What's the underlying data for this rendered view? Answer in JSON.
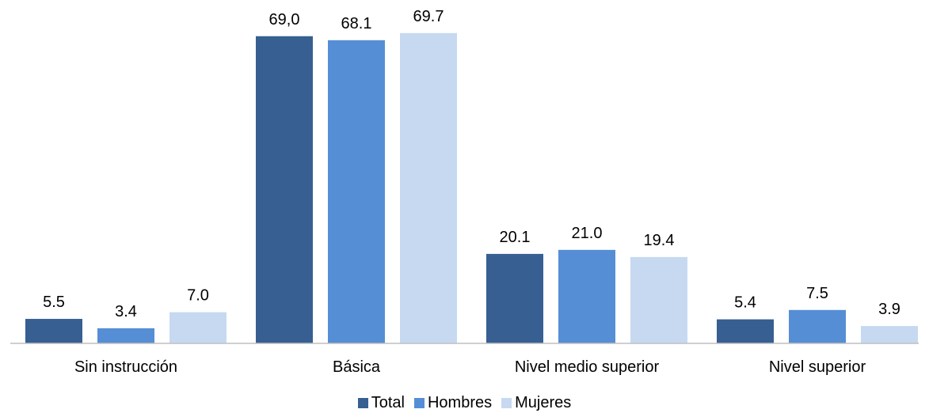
{
  "chart_data": {
    "type": "bar",
    "title": "",
    "xlabel": "",
    "ylabel": "",
    "ylim": [
      0,
      75
    ],
    "grid": false,
    "legend_position": "bottom",
    "categories": [
      "Sin instrucción",
      "Básica",
      "Nivel medio superior",
      "Nivel superior"
    ],
    "series": [
      {
        "name": "Total",
        "color": "#375F92",
        "values": [
          5.5,
          69.0,
          20.1,
          5.4
        ],
        "labels": [
          "5.5",
          "69,0",
          "20.1",
          "5.4"
        ]
      },
      {
        "name": "Hombres",
        "color": "#558ED5",
        "values": [
          3.4,
          68.1,
          21.0,
          7.5
        ],
        "labels": [
          "3.4",
          "68.1",
          "21.0",
          "7.5"
        ]
      },
      {
        "name": "Mujeres",
        "color": "#C6D9F1",
        "values": [
          7.0,
          69.7,
          19.4,
          3.9
        ],
        "labels": [
          "7.0",
          "69.7",
          "19.4",
          "3.9"
        ]
      }
    ]
  }
}
